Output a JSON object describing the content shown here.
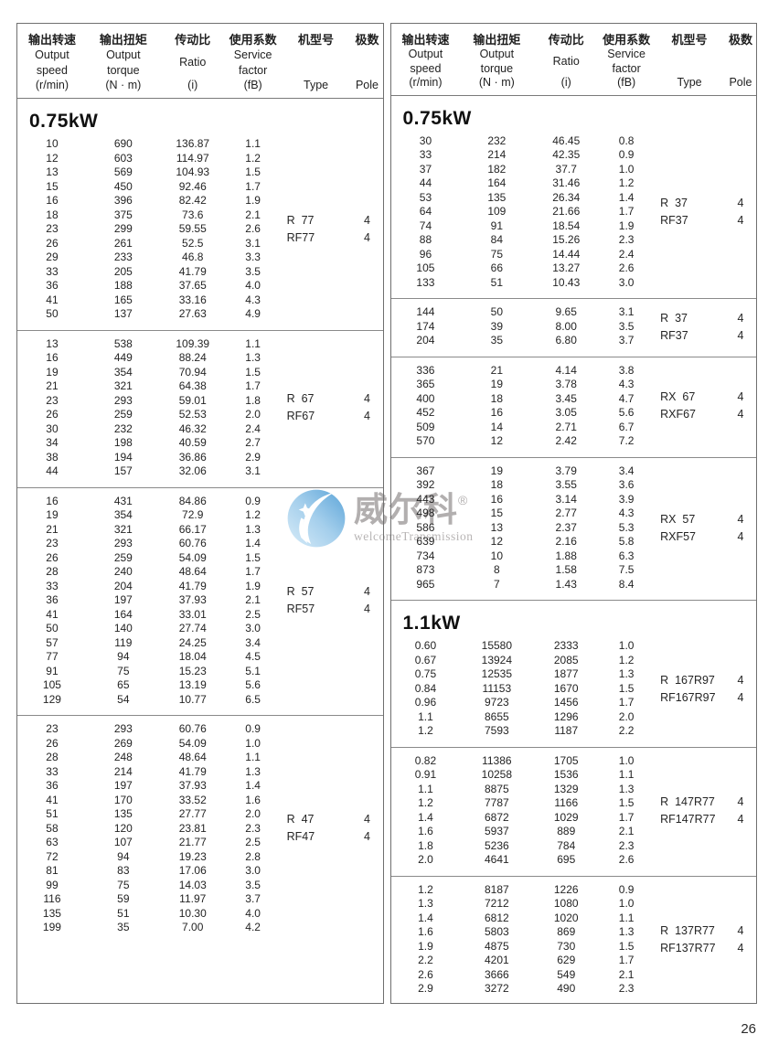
{
  "page_number": "26",
  "watermark": {
    "brand": "威尔科",
    "reg": "®",
    "subtitle": "welcomeTransmission",
    "logo_colors": {
      "blue_dark": "#5ba4d8",
      "blue_light": "#cfe7f6",
      "glyph": "#ffffff"
    }
  },
  "header": {
    "columns": [
      {
        "zh": "输出转速",
        "en": [
          "Output",
          "speed",
          "(r/min)"
        ]
      },
      {
        "zh": "输出扭矩",
        "en": [
          "Output",
          "torque",
          "(N · m)"
        ]
      },
      {
        "zh": "传动比",
        "en": [
          "Ratio",
          "(i)"
        ]
      },
      {
        "zh": "使用系数",
        "en": [
          "Service",
          "factor",
          "(fB)"
        ]
      },
      {
        "zh": "机型号",
        "en": [
          "Type"
        ]
      },
      {
        "zh": "极数",
        "en": [
          "Pole"
        ]
      }
    ]
  },
  "panels": [
    {
      "blocks": [
        {
          "heading": "0.75kW",
          "rows": [
            [
              "10",
              "690",
              "136.87",
              "1.1"
            ],
            [
              "12",
              "603",
              "114.97",
              "1.2"
            ],
            [
              "13",
              "569",
              "104.93",
              "1.5"
            ],
            [
              "15",
              "450",
              "92.46",
              "1.7"
            ],
            [
              "16",
              "396",
              "82.42",
              "1.9"
            ],
            [
              "18",
              "375",
              "73.6",
              "2.1"
            ],
            [
              "23",
              "299",
              "59.55",
              "2.6"
            ],
            [
              "26",
              "261",
              "52.5",
              "3.1"
            ],
            [
              "29",
              "233",
              "46.8",
              "3.3"
            ],
            [
              "33",
              "205",
              "41.79",
              "3.5"
            ],
            [
              "36",
              "188",
              "37.65",
              "4.0"
            ],
            [
              "41",
              "165",
              "33.16",
              "4.3"
            ],
            [
              "50",
              "137",
              "27.63",
              "4.9"
            ]
          ],
          "types": [
            {
              "label": "R  77",
              "pole": "4"
            },
            {
              "label": "RF77",
              "pole": "4"
            }
          ]
        },
        {
          "rows": [
            [
              "13",
              "538",
              "109.39",
              "1.1"
            ],
            [
              "16",
              "449",
              "88.24",
              "1.3"
            ],
            [
              "19",
              "354",
              "70.94",
              "1.5"
            ],
            [
              "21",
              "321",
              "64.38",
              "1.7"
            ],
            [
              "23",
              "293",
              "59.01",
              "1.8"
            ],
            [
              "26",
              "259",
              "52.53",
              "2.0"
            ],
            [
              "30",
              "232",
              "46.32",
              "2.4"
            ],
            [
              "34",
              "198",
              "40.59",
              "2.7"
            ],
            [
              "38",
              "194",
              "36.86",
              "2.9"
            ],
            [
              "44",
              "157",
              "32.06",
              "3.1"
            ]
          ],
          "types": [
            {
              "label": "R  67",
              "pole": "4"
            },
            {
              "label": "RF67",
              "pole": "4"
            }
          ]
        },
        {
          "rows": [
            [
              "16",
              "431",
              "84.86",
              "0.9"
            ],
            [
              "19",
              "354",
              "72.9",
              "1.2"
            ],
            [
              "21",
              "321",
              "66.17",
              "1.3"
            ],
            [
              "23",
              "293",
              "60.76",
              "1.4"
            ],
            [
              "26",
              "259",
              "54.09",
              "1.5"
            ],
            [
              "28",
              "240",
              "48.64",
              "1.7"
            ],
            [
              "33",
              "204",
              "41.79",
              "1.9"
            ],
            [
              "36",
              "197",
              "37.93",
              "2.1"
            ],
            [
              "41",
              "164",
              "33.01",
              "2.5"
            ],
            [
              "50",
              "140",
              "27.74",
              "3.0"
            ],
            [
              "57",
              "119",
              "24.25",
              "3.4"
            ],
            [
              "77",
              "94",
              "18.04",
              "4.5"
            ],
            [
              "91",
              "75",
              "15.23",
              "5.1"
            ],
            [
              "105",
              "65",
              "13.19",
              "5.6"
            ],
            [
              "129",
              "54",
              "10.77",
              "6.5"
            ]
          ],
          "types": [
            {
              "label": "R  57",
              "pole": "4"
            },
            {
              "label": "RF57",
              "pole": "4"
            }
          ]
        },
        {
          "rows": [
            [
              "23",
              "293",
              "60.76",
              "0.9"
            ],
            [
              "26",
              "269",
              "54.09",
              "1.0"
            ],
            [
              "28",
              "248",
              "48.64",
              "1.1"
            ],
            [
              "33",
              "214",
              "41.79",
              "1.3"
            ],
            [
              "36",
              "197",
              "37.93",
              "1.4"
            ],
            [
              "41",
              "170",
              "33.52",
              "1.6"
            ],
            [
              "51",
              "135",
              "27.77",
              "2.0"
            ],
            [
              "58",
              "120",
              "23.81",
              "2.3"
            ],
            [
              "63",
              "107",
              "21.77",
              "2.5"
            ],
            [
              "72",
              "94",
              "19.23",
              "2.8"
            ],
            [
              "81",
              "83",
              "17.06",
              "3.0"
            ],
            [
              "99",
              "75",
              "14.03",
              "3.5"
            ],
            [
              "116",
              "59",
              "11.97",
              "3.7"
            ],
            [
              "135",
              "51",
              "10.30",
              "4.0"
            ],
            [
              "199",
              "35",
              "7.00",
              "4.2"
            ]
          ],
          "types": [
            {
              "label": "R  47",
              "pole": "4"
            },
            {
              "label": "RF47",
              "pole": "4"
            }
          ]
        }
      ]
    },
    {
      "blocks": [
        {
          "heading": "0.75kW",
          "rows": [
            [
              "30",
              "232",
              "46.45",
              "0.8"
            ],
            [
              "33",
              "214",
              "42.35",
              "0.9"
            ],
            [
              "37",
              "182",
              "37.7",
              "1.0"
            ],
            [
              "44",
              "164",
              "31.46",
              "1.2"
            ],
            [
              "53",
              "135",
              "26.34",
              "1.4"
            ],
            [
              "64",
              "109",
              "21.66",
              "1.7"
            ],
            [
              "74",
              "91",
              "18.54",
              "1.9"
            ],
            [
              "88",
              "84",
              "15.26",
              "2.3"
            ],
            [
              "96",
              "75",
              "14.44",
              "2.4"
            ],
            [
              "105",
              "66",
              "13.27",
              "2.6"
            ],
            [
              "133",
              "51",
              "10.43",
              "3.0"
            ]
          ],
          "types": [
            {
              "label": "R  37",
              "pole": "4"
            },
            {
              "label": "RF37",
              "pole": "4"
            }
          ]
        },
        {
          "rows": [
            [
              "144",
              "50",
              "9.65",
              "3.1"
            ],
            [
              "174",
              "39",
              "8.00",
              "3.5"
            ],
            [
              "204",
              "35",
              "6.80",
              "3.7"
            ]
          ],
          "types": [
            {
              "label": "R  37",
              "pole": "4"
            },
            {
              "label": "RF37",
              "pole": "4"
            }
          ]
        },
        {
          "rows": [
            [
              "336",
              "21",
              "4.14",
              "3.8"
            ],
            [
              "365",
              "19",
              "3.78",
              "4.3"
            ],
            [
              "400",
              "18",
              "3.45",
              "4.7"
            ],
            [
              "452",
              "16",
              "3.05",
              "5.6"
            ],
            [
              "509",
              "14",
              "2.71",
              "6.7"
            ],
            [
              "570",
              "12",
              "2.42",
              "7.2"
            ]
          ],
          "types": [
            {
              "label": "RX  67",
              "pole": "4"
            },
            {
              "label": "RXF67",
              "pole": "4"
            }
          ]
        },
        {
          "rows": [
            [
              "367",
              "19",
              "3.79",
              "3.4"
            ],
            [
              "392",
              "18",
              "3.55",
              "3.6"
            ],
            [
              "443",
              "16",
              "3.14",
              "3.9"
            ],
            [
              "498",
              "15",
              "2.77",
              "4.3"
            ],
            [
              "586",
              "13",
              "2.37",
              "5.3"
            ],
            [
              "639",
              "12",
              "2.16",
              "5.8"
            ],
            [
              "734",
              "10",
              "1.88",
              "6.3"
            ],
            [
              "873",
              "8",
              "1.58",
              "7.5"
            ],
            [
              "965",
              "7",
              "1.43",
              "8.4"
            ]
          ],
          "types": [
            {
              "label": "RX  57",
              "pole": "4"
            },
            {
              "label": "RXF57",
              "pole": "4"
            }
          ]
        },
        {
          "heading": "1.1kW",
          "rows": [
            [
              "0.60",
              "15580",
              "2333",
              "1.0"
            ],
            [
              "0.67",
              "13924",
              "2085",
              "1.2"
            ],
            [
              "0.75",
              "12535",
              "1877",
              "1.3"
            ],
            [
              "0.84",
              "11153",
              "1670",
              "1.5"
            ],
            [
              "0.96",
              "9723",
              "1456",
              "1.7"
            ],
            [
              "1.1",
              "8655",
              "1296",
              "2.0"
            ],
            [
              "1.2",
              "7593",
              "1187",
              "2.2"
            ]
          ],
          "types": [
            {
              "label": "R  167R97",
              "pole": "4"
            },
            {
              "label": "RF167R97",
              "pole": "4"
            }
          ]
        },
        {
          "rows": [
            [
              "0.82",
              "11386",
              "1705",
              "1.0"
            ],
            [
              "0.91",
              "10258",
              "1536",
              "1.1"
            ],
            [
              "1.1",
              "8875",
              "1329",
              "1.3"
            ],
            [
              "1.2",
              "7787",
              "1166",
              "1.5"
            ],
            [
              "1.4",
              "6872",
              "1029",
              "1.7"
            ],
            [
              "1.6",
              "5937",
              "889",
              "2.1"
            ],
            [
              "1.8",
              "5236",
              "784",
              "2.3"
            ],
            [
              "2.0",
              "4641",
              "695",
              "2.6"
            ]
          ],
          "types": [
            {
              "label": "R  147R77",
              "pole": "4"
            },
            {
              "label": "RF147R77",
              "pole": "4"
            }
          ]
        },
        {
          "rows": [
            [
              "1.2",
              "8187",
              "1226",
              "0.9"
            ],
            [
              "1.3",
              "7212",
              "1080",
              "1.0"
            ],
            [
              "1.4",
              "6812",
              "1020",
              "1.1"
            ],
            [
              "1.6",
              "5803",
              "869",
              "1.3"
            ],
            [
              "1.9",
              "4875",
              "730",
              "1.5"
            ],
            [
              "2.2",
              "4201",
              "629",
              "1.7"
            ],
            [
              "2.6",
              "3666",
              "549",
              "2.1"
            ],
            [
              "2.9",
              "3272",
              "490",
              "2.3"
            ]
          ],
          "types": [
            {
              "label": "R  137R77",
              "pole": "4"
            },
            {
              "label": "RF137R77",
              "pole": "4"
            }
          ]
        }
      ]
    }
  ]
}
